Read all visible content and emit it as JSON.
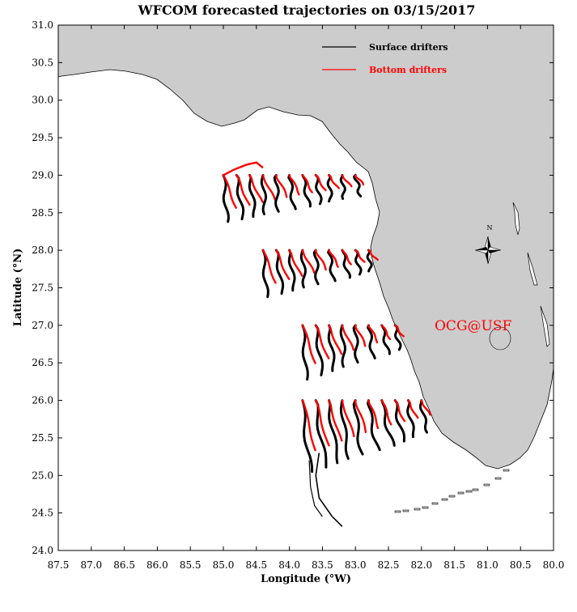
{
  "title": "WFCOM forecasted trajectories on 03/15/2017",
  "x_axis": {
    "label": "Longitude (°W)",
    "range": [
      87.5,
      80.0
    ],
    "ticks": [
      "87.5",
      "87.0",
      "86.5",
      "86.0",
      "85.5",
      "85.0",
      "84.5",
      "84.0",
      "83.5",
      "83.0",
      "82.5",
      "82.0",
      "81.5",
      "81.0",
      "80.5",
      "80.0"
    ]
  },
  "y_axis": {
    "label": "Latitude (°N)",
    "range": [
      24.0,
      31.0
    ],
    "ticks": [
      "24.0",
      "24.5",
      "25.0",
      "25.5",
      "26.0",
      "26.5",
      "27.0",
      "27.5",
      "28.0",
      "28.5",
      "29.0",
      "29.5",
      "30.0",
      "30.5",
      "31.0"
    ]
  },
  "legend": {
    "placement": "top-right",
    "items": [
      {
        "label": "Surface drifters",
        "color": "#000000"
      },
      {
        "label": "Bottom drifters",
        "color": "#ff0000"
      }
    ]
  },
  "compass_label": "N",
  "watermark": "OCG@USF",
  "colors": {
    "land": "#cccccc",
    "surface": "#000000",
    "bottom": "#ff0000",
    "watermark": "#ff0000"
  },
  "chart_data": {
    "type": "map-trajectories",
    "release_rows": [
      {
        "lat": 29.0,
        "lons": [
          85.0,
          84.8,
          84.6,
          84.4,
          84.2,
          84.0,
          83.8,
          83.6,
          83.4,
          83.2,
          83.0
        ]
      },
      {
        "lat": 28.0,
        "lons": [
          84.4,
          84.2,
          84.0,
          83.8,
          83.6,
          83.4,
          83.2,
          83.0,
          82.8
        ]
      },
      {
        "lat": 27.0,
        "lons": [
          83.8,
          83.6,
          83.4,
          83.2,
          83.0,
          82.8,
          82.6,
          82.4
        ]
      },
      {
        "lat": 26.0,
        "lons": [
          83.8,
          83.6,
          83.4,
          83.2,
          83.0,
          82.8,
          82.6,
          82.4,
          82.2,
          82.0
        ]
      }
    ]
  }
}
